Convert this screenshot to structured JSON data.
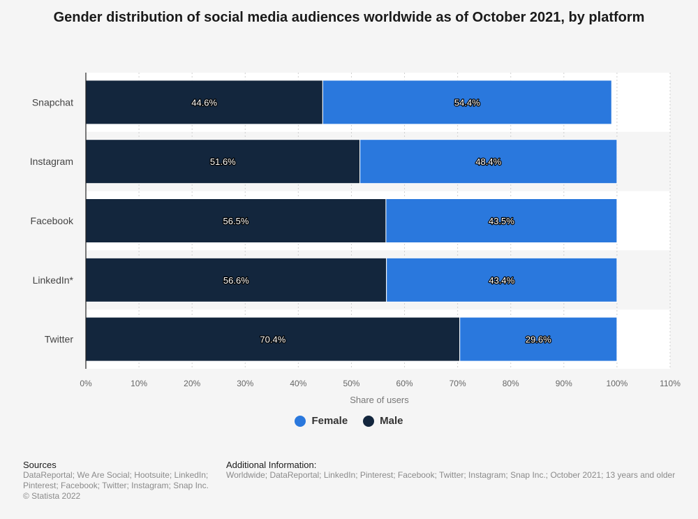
{
  "chart_data": {
    "type": "bar",
    "orientation": "horizontal",
    "stacked": true,
    "title": "Gender distribution of social media audiences worldwide as of October 2021, by platform",
    "categories": [
      "Snapchat",
      "Instagram",
      "Facebook",
      "LinkedIn*",
      "Twitter"
    ],
    "series": [
      {
        "name": "Male",
        "color": "#13263d",
        "values": [
          44.6,
          51.6,
          56.5,
          56.6,
          70.4
        ],
        "labels": [
          "44.6%",
          "51.6%",
          "56.5%",
          "56.6%",
          "70.4%"
        ]
      },
      {
        "name": "Female",
        "color": "#2a78dd",
        "values": [
          54.4,
          48.4,
          43.5,
          43.4,
          29.6
        ],
        "labels": [
          "54.4%",
          "48.4%",
          "43.5%",
          "43.4%",
          "29.6%"
        ]
      }
    ],
    "xlabel": "Share of users",
    "xlim": [
      0,
      110
    ],
    "xticks": [
      "0%",
      "10%",
      "20%",
      "30%",
      "40%",
      "50%",
      "60%",
      "70%",
      "80%",
      "90%",
      "100%",
      "110%"
    ],
    "grid": true,
    "legend_position": "bottom"
  },
  "legend": [
    {
      "label": "Female",
      "color": "#2a78dd"
    },
    {
      "label": "Male",
      "color": "#13263d"
    }
  ],
  "footer": {
    "sources_heading": "Sources",
    "sources_text": "DataReportal; We Are Social; Hootsuite; LinkedIn; Pinterest; Facebook; Twitter; Instagram; Snap Inc.",
    "copyright": "© Statista 2022",
    "additional_heading": "Additional Information:",
    "additional_text": "Worldwide; DataReportal; LinkedIn; Pinterest; Facebook; Twitter; Instagram; Snap Inc.; October 2021; 13 years and older"
  }
}
